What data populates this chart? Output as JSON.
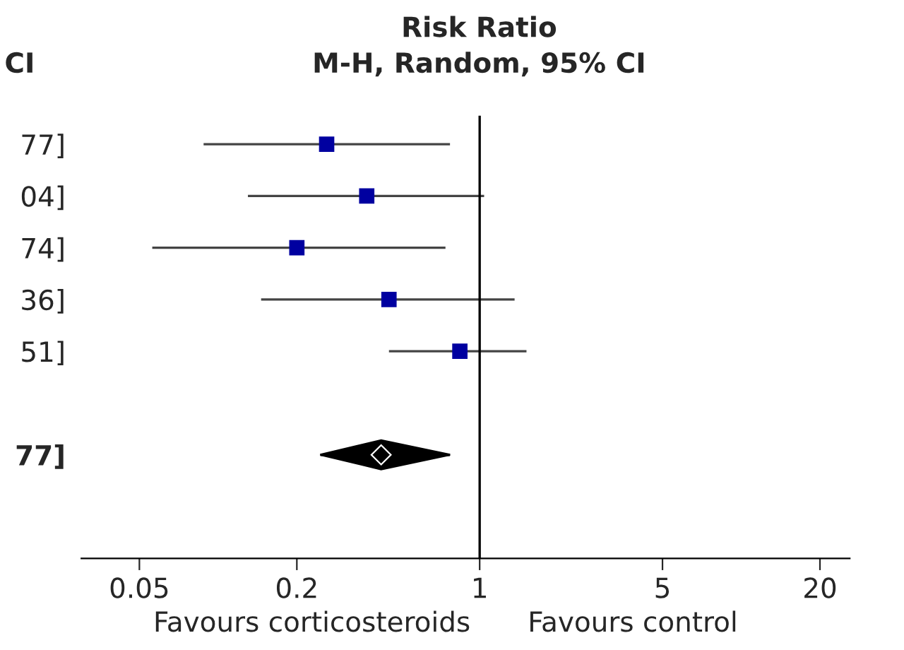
{
  "chart_data": {
    "type": "scatter",
    "orientation": "horizontal",
    "title": "Risk Ratio",
    "subtitle": "M-H, Random, 95% CI",
    "categories": [
      "77]",
      "04]",
      "74]",
      "36]",
      "51]",
      null,
      "77]"
    ],
    "series": [
      {
        "type": "scatter",
        "marker": "square",
        "color": "#0000a0",
        "values": [
          0.26,
          0.37,
          0.2,
          0.45,
          0.84,
          null,
          null
        ],
        "errors": [
          [
            0.088,
            0.77
          ],
          [
            0.13,
            1.04
          ],
          [
            0.056,
            0.74
          ],
          [
            0.146,
            1.36
          ],
          [
            0.45,
            1.51
          ],
          null,
          null
        ]
      },
      {
        "type": "scatter",
        "marker": "diamond",
        "color": "#000000",
        "values": [
          null,
          null,
          null,
          null,
          null,
          null,
          0.42
        ],
        "errors": [
          null,
          null,
          null,
          null,
          null,
          null,
          [
            0.246,
            0.77
          ]
        ]
      }
    ],
    "log": "x",
    "xlim": [
      0.03,
      26
    ],
    "xticks": [
      0.05,
      0.2,
      1,
      5,
      20
    ],
    "ref_lines": [
      {
        "axis": "x",
        "value": 1,
        "color": "#000000"
      }
    ],
    "annotations": [
      "CI",
      "Favours corticosteroids",
      "Favours control"
    ],
    "grid": false,
    "legend": false
  }
}
